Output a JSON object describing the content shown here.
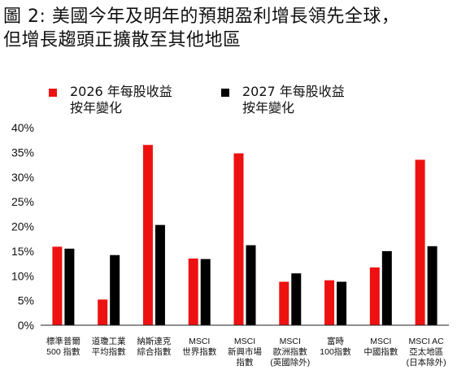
{
  "title": {
    "line1": "圖 2: 美國今年及明年的預期盈利增長領先全球，",
    "line2": "但增長趨頭正擴散至其他地區"
  },
  "colors": {
    "series_2026": "#ee1111",
    "series_2027": "#000000",
    "axis": "#222222"
  },
  "chart_data": {
    "type": "bar",
    "title": "",
    "xlabel": "",
    "ylabel": "",
    "ylim": [
      0,
      0.4
    ],
    "yticks": [
      "0%",
      "5%",
      "10%",
      "15%",
      "20%",
      "25%",
      "30%",
      "35%",
      "40%"
    ],
    "grid": false,
    "legend_position": "top",
    "categories": [
      [
        "標準普爾",
        "500 指數"
      ],
      [
        "道瓊工業",
        "平均指數"
      ],
      [
        "納斯達克",
        "綜合指數"
      ],
      [
        "MSCI",
        "世界指數"
      ],
      [
        "MSCI",
        "新興市場",
        "指數"
      ],
      [
        "MSCI",
        "歐洲指數",
        "(英國除外)"
      ],
      [
        "富時",
        "100指數"
      ],
      [
        "MSCI",
        "中國指數"
      ],
      [
        "MSCI AC",
        "亞太地區",
        "(日本除外)"
      ]
    ],
    "series": [
      {
        "name": [
          "2026 年每股收益",
          "按年變化"
        ],
        "values": [
          0.159,
          0.052,
          0.365,
          0.135,
          0.348,
          0.088,
          0.091,
          0.117,
          0.335
        ]
      },
      {
        "name": [
          "2027 年每股收益",
          "按年變化"
        ],
        "values": [
          0.155,
          0.142,
          0.203,
          0.134,
          0.162,
          0.105,
          0.088,
          0.15,
          0.16
        ]
      }
    ]
  }
}
